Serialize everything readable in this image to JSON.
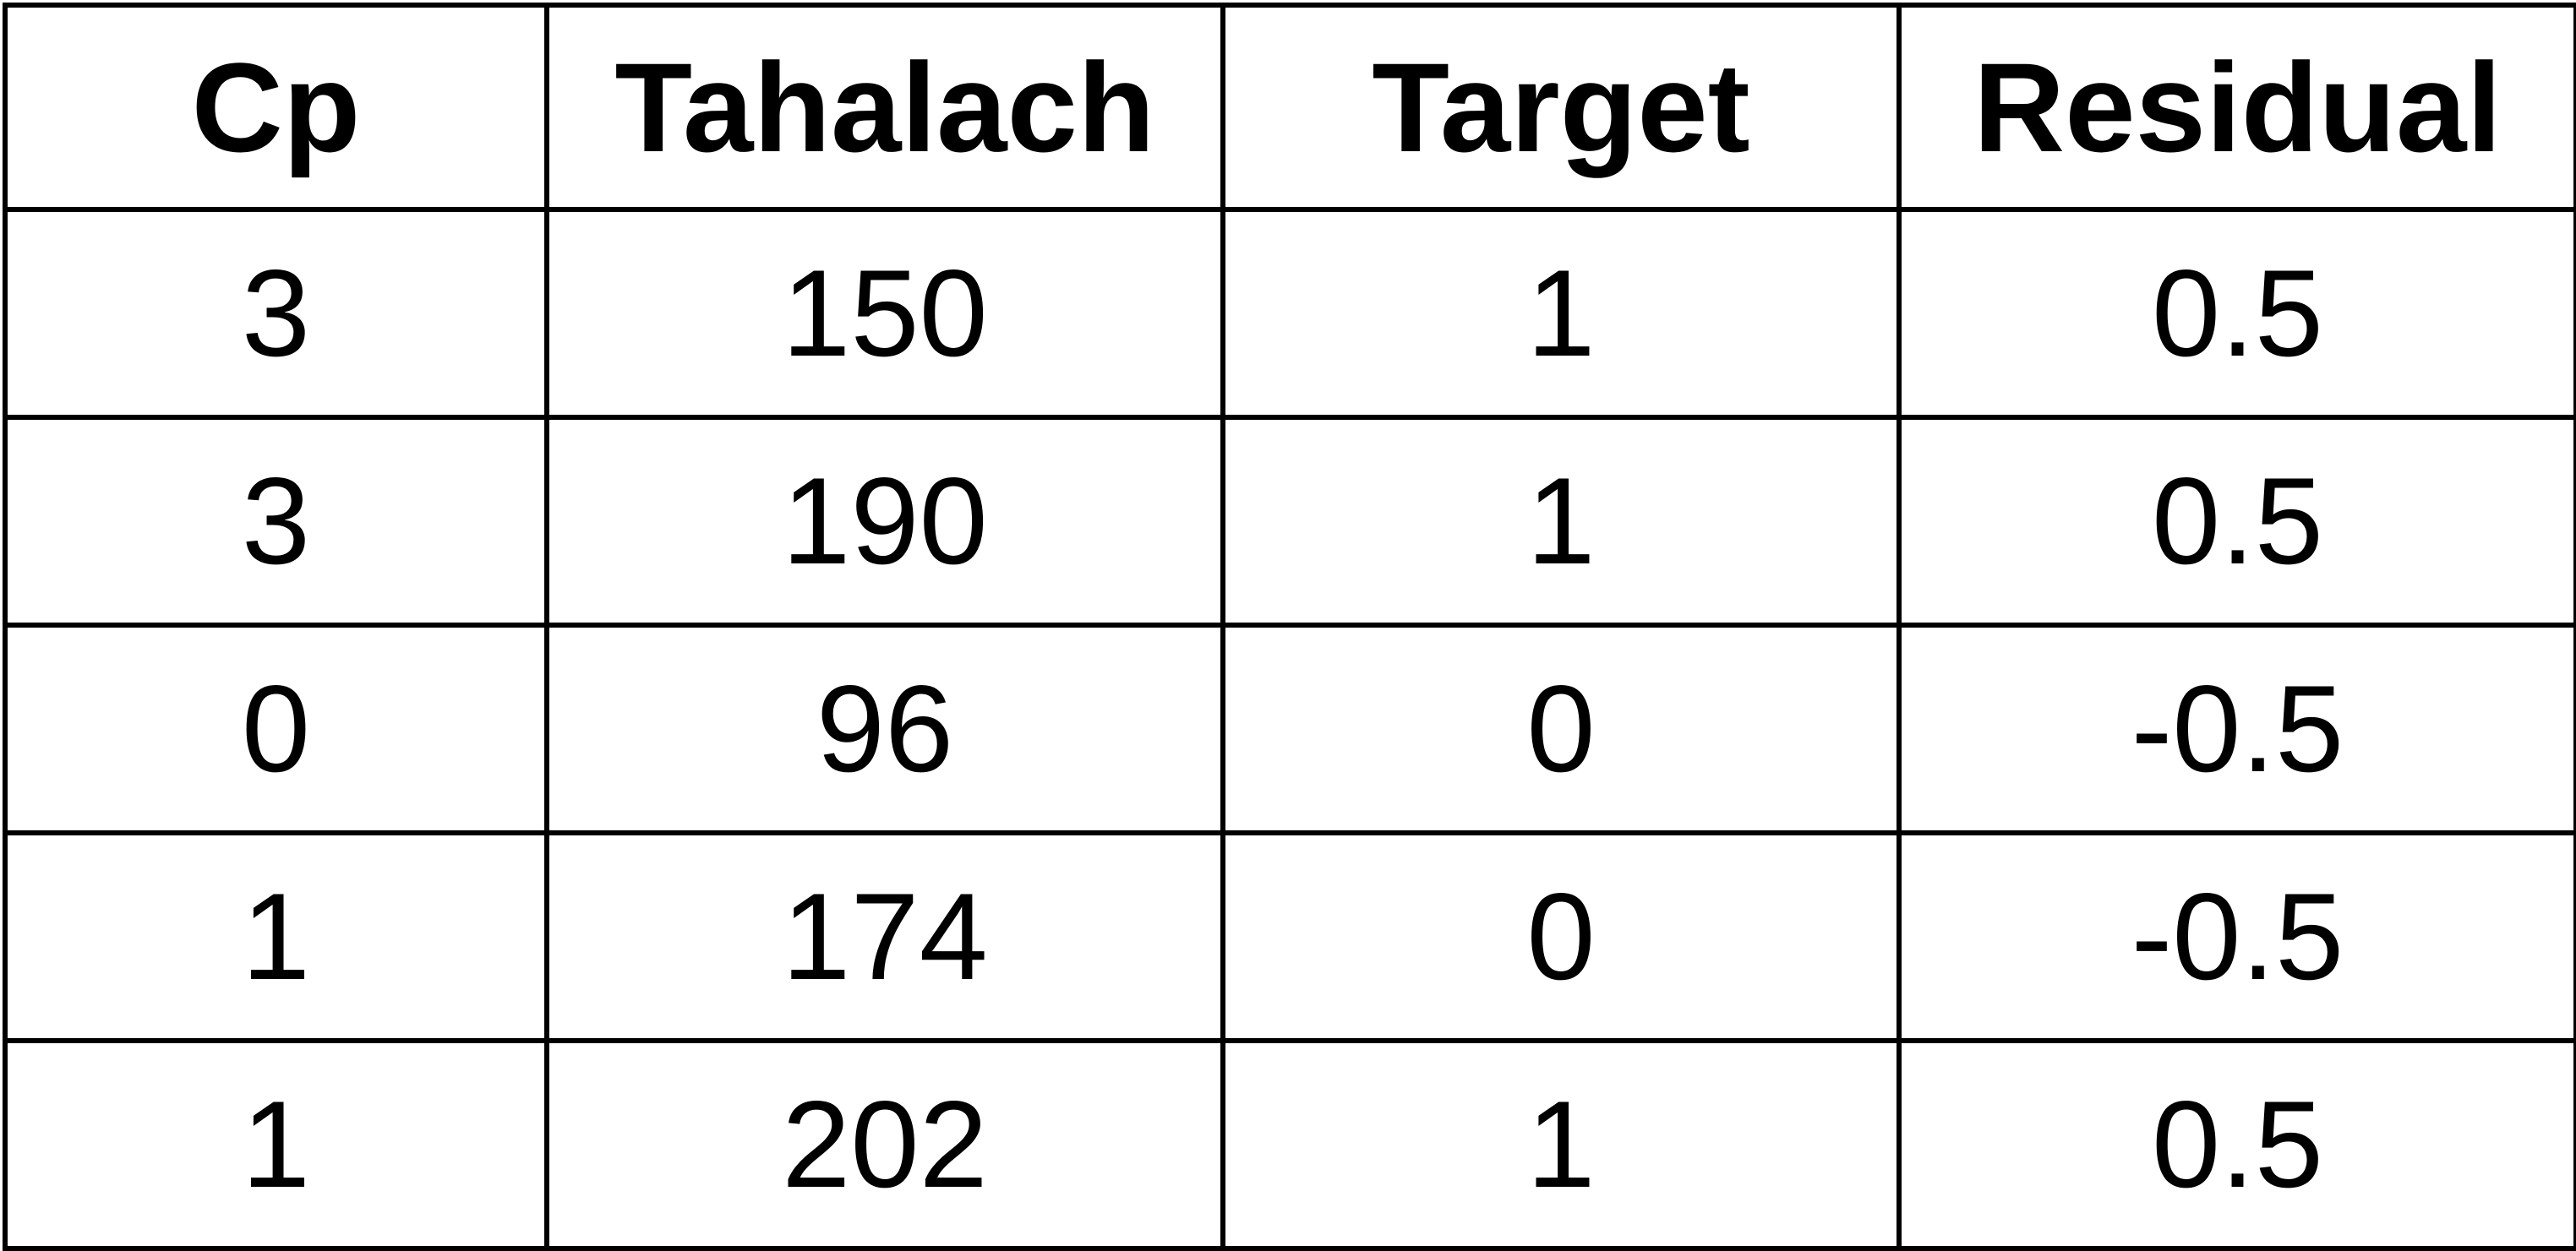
{
  "table": {
    "headers": [
      "Cp",
      "Tahalach",
      "Target",
      "Residual"
    ],
    "rows": [
      [
        "3",
        "150",
        "1",
        "0.5"
      ],
      [
        "3",
        "190",
        "1",
        "0.5"
      ],
      [
        "0",
        "96",
        "0",
        "-0.5"
      ],
      [
        "1",
        "174",
        "0",
        "-0.5"
      ],
      [
        "1",
        "202",
        "1",
        "0.5"
      ]
    ]
  }
}
